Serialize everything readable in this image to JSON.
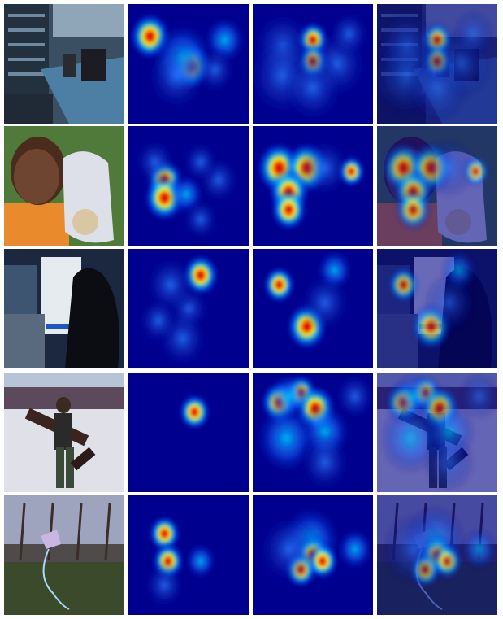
{
  "figure": {
    "columns": [
      "photo",
      "saliency-map-a",
      "saliency-map-b",
      "overlay"
    ],
    "rows": [
      {
        "scene": "kitchen-counter"
      },
      {
        "scene": "boy-with-baseball-glove"
      },
      {
        "scene": "cat-by-computer-monitor"
      },
      {
        "scene": "person-in-snow"
      },
      {
        "scene": "kite-in-park"
      }
    ]
  },
  "colors": {
    "heat_low": "#00008f",
    "heat_mid": "#00c8ff",
    "heat_high": "#ffff00",
    "heat_peak": "#b00000",
    "background": "#ffffff"
  }
}
